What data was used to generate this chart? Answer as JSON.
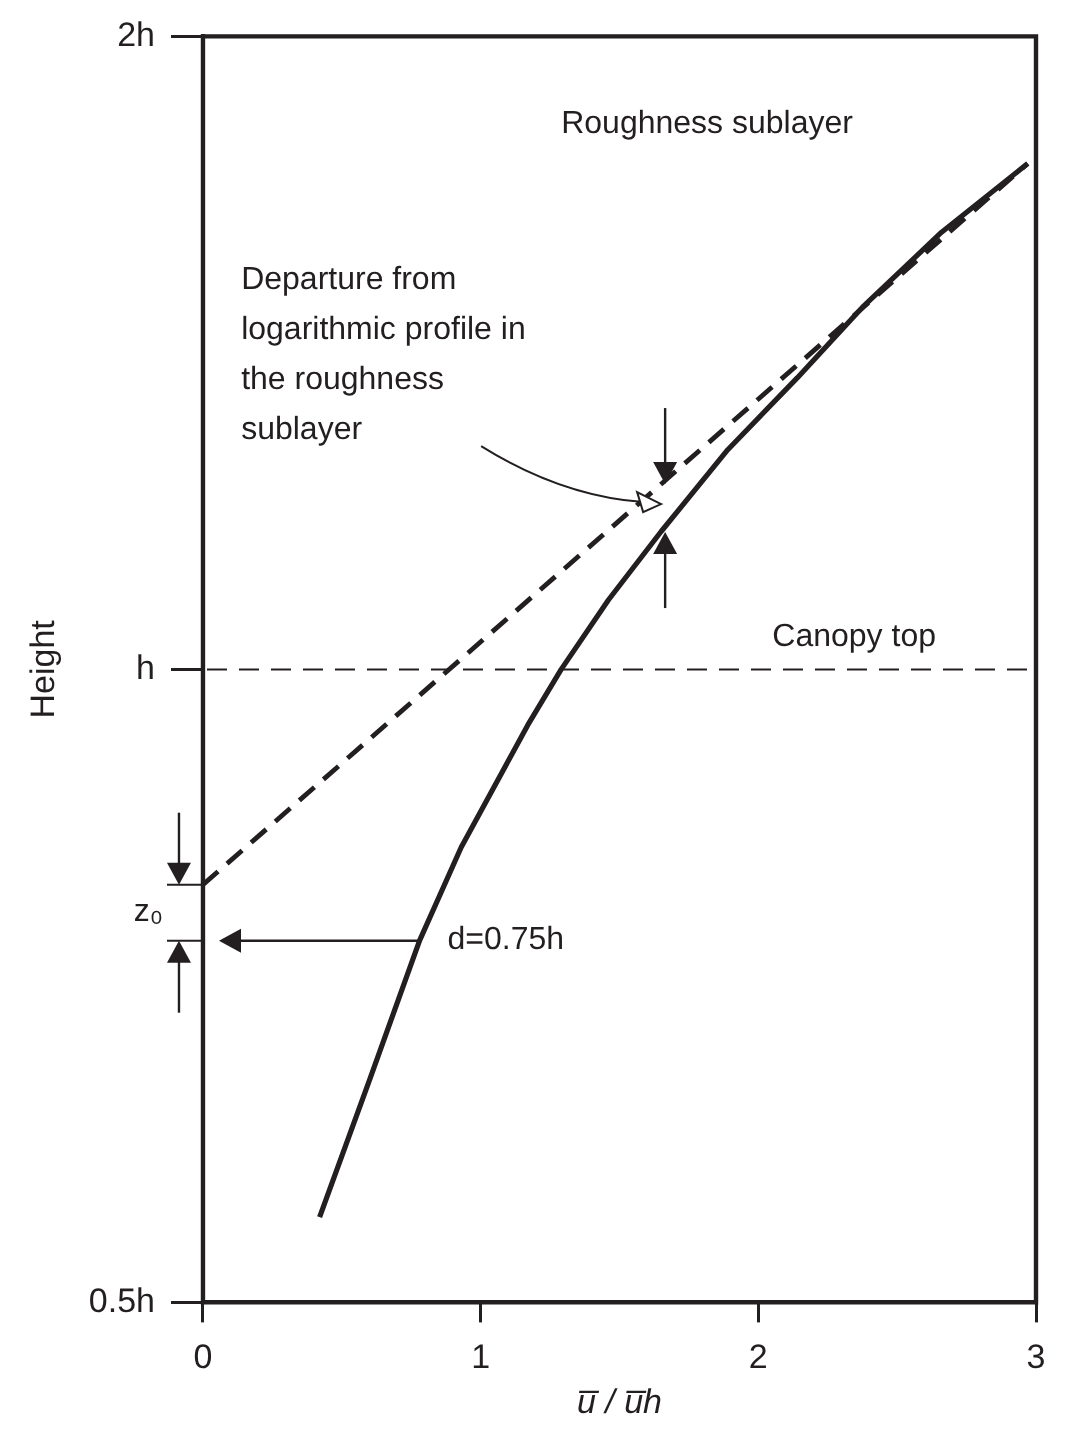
{
  "chart_data": {
    "type": "line",
    "xlabel": "u̅ / u̅h",
    "ylabel": "Height",
    "log": "y",
    "xlim": [
      0,
      3
    ],
    "xticks": [
      0,
      1,
      2,
      3
    ],
    "ylim": [
      0.5,
      2
    ],
    "yticks": [
      {
        "value": 0.5,
        "label": "0.5h"
      },
      {
        "value": 1,
        "label": "h"
      },
      {
        "value": 2,
        "label": "2h"
      }
    ],
    "grid": false,
    "legend": false,
    "marker": "none",
    "series": [
      {
        "color": "#231f20",
        "line_style": "solid",
        "x": [
          0.42,
          0.6,
          0.78,
          0.93,
          1.17,
          1.29,
          1.46,
          1.65,
          1.89,
          2.14,
          2.38,
          2.66,
          2.97
        ],
        "values": [
          0.549,
          0.638,
          0.743,
          0.823,
          0.941,
          1.0,
          1.079,
          1.163,
          1.272,
          1.376,
          1.489,
          1.614,
          1.74
        ]
      },
      {
        "color": "#231f20",
        "line_style": "dashed",
        "x": [
          0,
          2.97
        ],
        "values": [
          0.79,
          1.74
        ]
      }
    ],
    "ref_lines": [
      {
        "axis": "y",
        "value": 1,
        "label": "Canopy top",
        "line_style": "dashed",
        "color": "#231f20"
      }
    ],
    "annotations": [
      "Roughness sublayer",
      "Departure from logarithmic profile in the roughness sublayer",
      {
        "text": "d=0.75h",
        "x": 0.78,
        "y": 0.743
      },
      "z₀"
    ]
  }
}
